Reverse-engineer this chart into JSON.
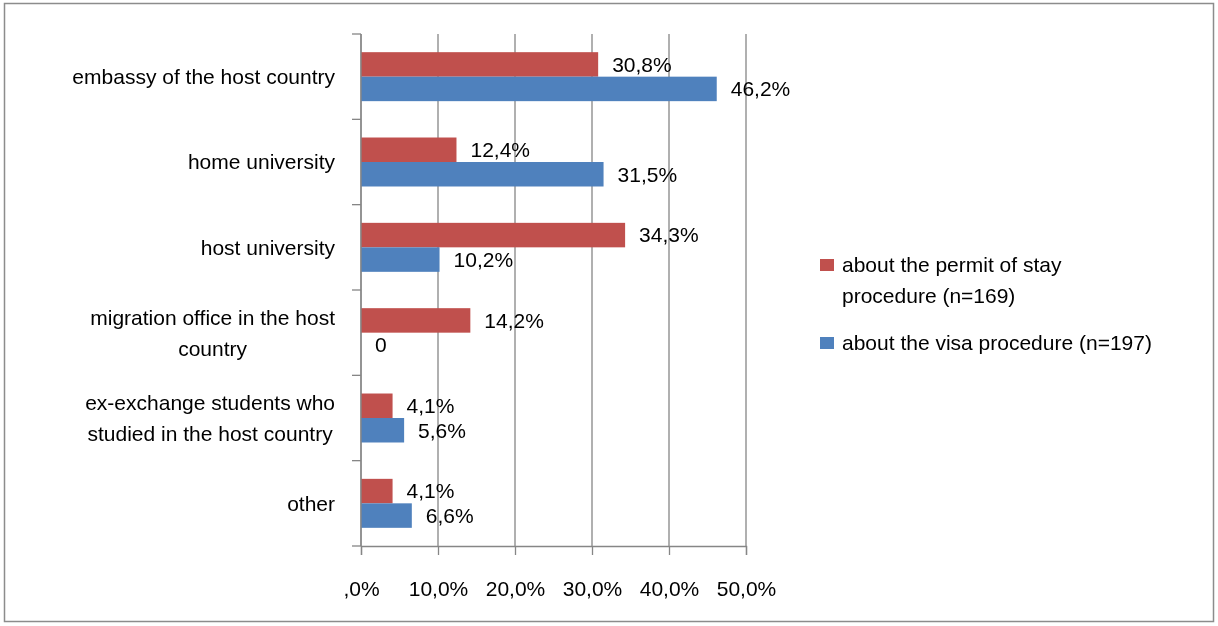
{
  "chart_data": {
    "type": "bar",
    "orientation": "horizontal",
    "categories": [
      "embassy of the host country",
      "home university",
      "host university",
      "migration office in the host country",
      "ex-exchange students who studied in the host country",
      "other"
    ],
    "series": [
      {
        "name": "about the permit of stay procedure (n=169)",
        "color": "#c0504d",
        "values": [
          30.8,
          12.4,
          34.3,
          14.2,
          4.1,
          4.1
        ],
        "value_labels": [
          "30,8%",
          "12,4%",
          "34,3%",
          "14,2%",
          "4,1%",
          "4,1%"
        ]
      },
      {
        "name": "about the visa procedure (n=197)",
        "color": "#4f81bd",
        "values": [
          46.2,
          31.5,
          10.2,
          0,
          5.6,
          6.6
        ],
        "value_labels": [
          "46,2%",
          "31,5%",
          "10,2%",
          "0",
          "5,6%",
          "6,6%"
        ]
      }
    ],
    "xlim": [
      0,
      50
    ],
    "xticks": [
      {
        "value": 0,
        "label": ",0%"
      },
      {
        "value": 10,
        "label": "10,0%"
      },
      {
        "value": 20,
        "label": "20,0%"
      },
      {
        "value": 30,
        "label": "30,0%"
      },
      {
        "value": 40,
        "label": "40,0%"
      },
      {
        "value": 50,
        "label": "50,0%"
      }
    ],
    "grid": "x",
    "legend": "right"
  }
}
